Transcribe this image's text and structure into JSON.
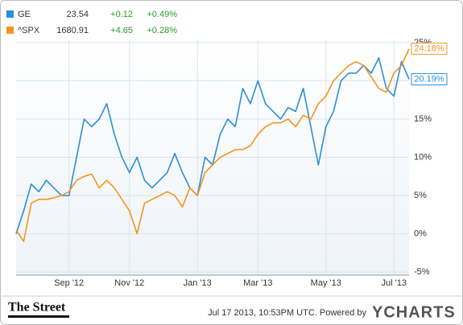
{
  "chart_data": {
    "type": "line",
    "categories": [
      null,
      null,
      null,
      null,
      null,
      null,
      null,
      "Sep '12",
      null,
      null,
      null,
      null,
      null,
      null,
      null,
      "Nov '12",
      null,
      null,
      null,
      null,
      null,
      null,
      null,
      null,
      "Jan '13",
      null,
      null,
      null,
      null,
      null,
      null,
      null,
      "Mar '13",
      null,
      null,
      null,
      null,
      null,
      null,
      null,
      null,
      "May '13",
      null,
      null,
      null,
      null,
      null,
      null,
      null,
      null,
      "Jul '13",
      null,
      null
    ],
    "series": [
      {
        "name": "GE",
        "color": "#2a8fd9",
        "price": 23.54,
        "change": "+0.12",
        "change_pct": "+0.49%",
        "values": [
          0,
          3,
          6.5,
          5.5,
          7,
          6,
          5,
          5,
          10,
          15,
          14,
          15,
          17,
          13,
          10,
          8,
          10,
          7,
          6,
          7,
          8,
          10.5,
          8,
          6,
          5,
          10,
          9,
          13,
          15,
          14,
          19,
          17,
          20,
          17,
          16,
          15,
          16.5,
          16,
          19,
          14,
          9,
          14,
          16,
          20,
          21,
          21,
          22,
          21,
          23,
          19,
          18,
          22.5,
          20.19
        ],
        "value_labels": [
          null,
          null,
          null,
          null,
          null,
          null,
          null,
          null,
          null,
          null,
          null,
          null,
          null,
          null,
          null,
          null,
          null,
          null,
          null,
          null,
          null,
          null,
          null,
          null,
          null,
          null,
          null,
          null,
          null,
          null,
          null,
          null,
          null,
          null,
          null,
          null,
          null,
          null,
          null,
          null,
          null,
          null,
          null,
          null,
          null,
          null,
          null,
          null,
          null,
          null,
          null,
          null,
          "20.19%"
        ]
      },
      {
        "name": "^SPX",
        "color": "#f7931e",
        "price": 1680.91,
        "change": "+4.65",
        "change_pct": "+0.28%",
        "values": [
          0.5,
          -1,
          4,
          4.5,
          4.5,
          4.7,
          5,
          5.5,
          7,
          7.5,
          7.8,
          6,
          7,
          6,
          4.5,
          3,
          0,
          4,
          4.5,
          5,
          5.5,
          5,
          3.5,
          6,
          5,
          8,
          9,
          10,
          10.5,
          11,
          11,
          11.5,
          13,
          14,
          14.5,
          14.5,
          15,
          14,
          15.5,
          15,
          17,
          18,
          20,
          21,
          22,
          22.5,
          22,
          20.5,
          19,
          18.5,
          21,
          22,
          24.18
        ],
        "value_labels": [
          null,
          null,
          null,
          null,
          null,
          null,
          null,
          null,
          null,
          null,
          null,
          null,
          null,
          null,
          null,
          null,
          null,
          null,
          null,
          null,
          null,
          null,
          null,
          null,
          null,
          null,
          null,
          null,
          null,
          null,
          null,
          null,
          null,
          null,
          null,
          null,
          null,
          null,
          null,
          null,
          null,
          null,
          null,
          null,
          null,
          null,
          null,
          null,
          null,
          null,
          null,
          null,
          "24.18%"
        ]
      }
    ],
    "ylim": [
      -5.4,
      25.3
    ],
    "yticks": [
      {
        "value": -5,
        "label": "-5%"
      },
      {
        "value": 0,
        "label": "0%"
      },
      {
        "value": 5,
        "label": "5%"
      },
      {
        "value": 10,
        "label": "10%"
      },
      {
        "value": 15,
        "label": "15%"
      },
      {
        "value": 20,
        "label": "20%"
      },
      {
        "value": 25,
        "label": "25%"
      }
    ],
    "grid": true
  },
  "footer": {
    "logo": "The Street",
    "timestamp": "Jul 17 2013, 10:53PM UTC. Powered by",
    "brand": "YCHARTS"
  }
}
